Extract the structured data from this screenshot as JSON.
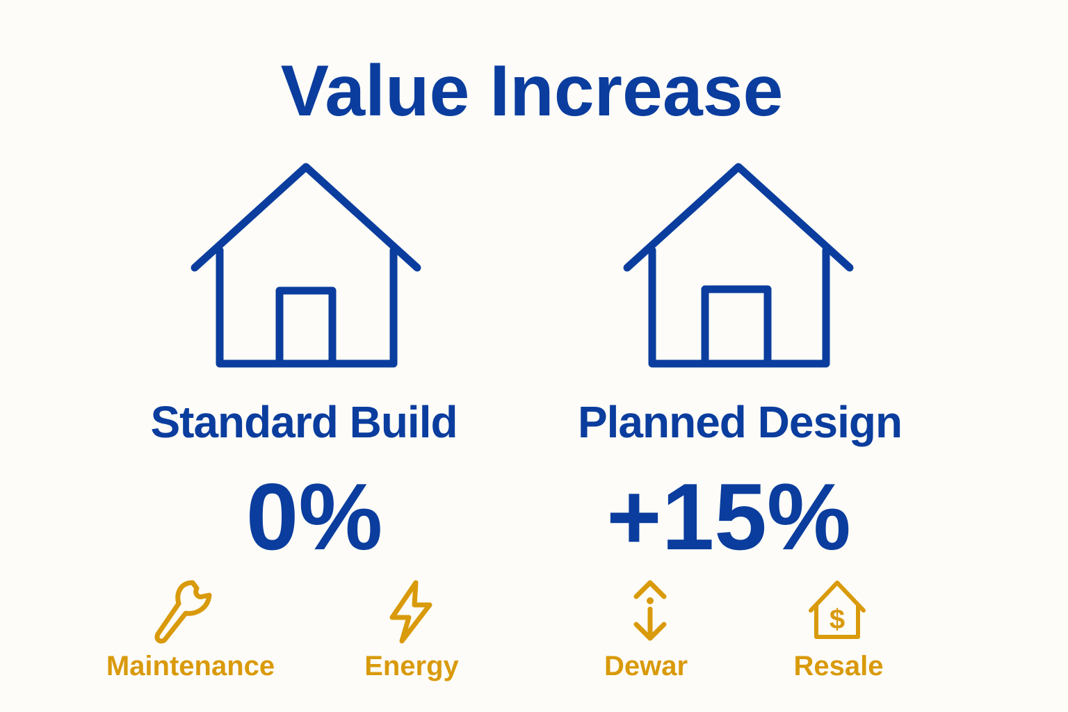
{
  "title": "Value Increase",
  "colors": {
    "primary": "#0b3d9e",
    "accent": "#d99a0b",
    "background": "#fdfcf8"
  },
  "columns": [
    {
      "label": "Standard Build",
      "value": "0%",
      "icon": "house-icon"
    },
    {
      "label": "Planned Design",
      "value": "+15%",
      "icon": "house-icon"
    }
  ],
  "factors": [
    {
      "label": "Maintenance",
      "icon": "wrench-icon"
    },
    {
      "label": "Energy",
      "icon": "lightning-icon"
    },
    {
      "label": "Dewar",
      "icon": "up-down-arrow-icon"
    },
    {
      "label": "Resale",
      "icon": "house-dollar-icon"
    }
  ]
}
